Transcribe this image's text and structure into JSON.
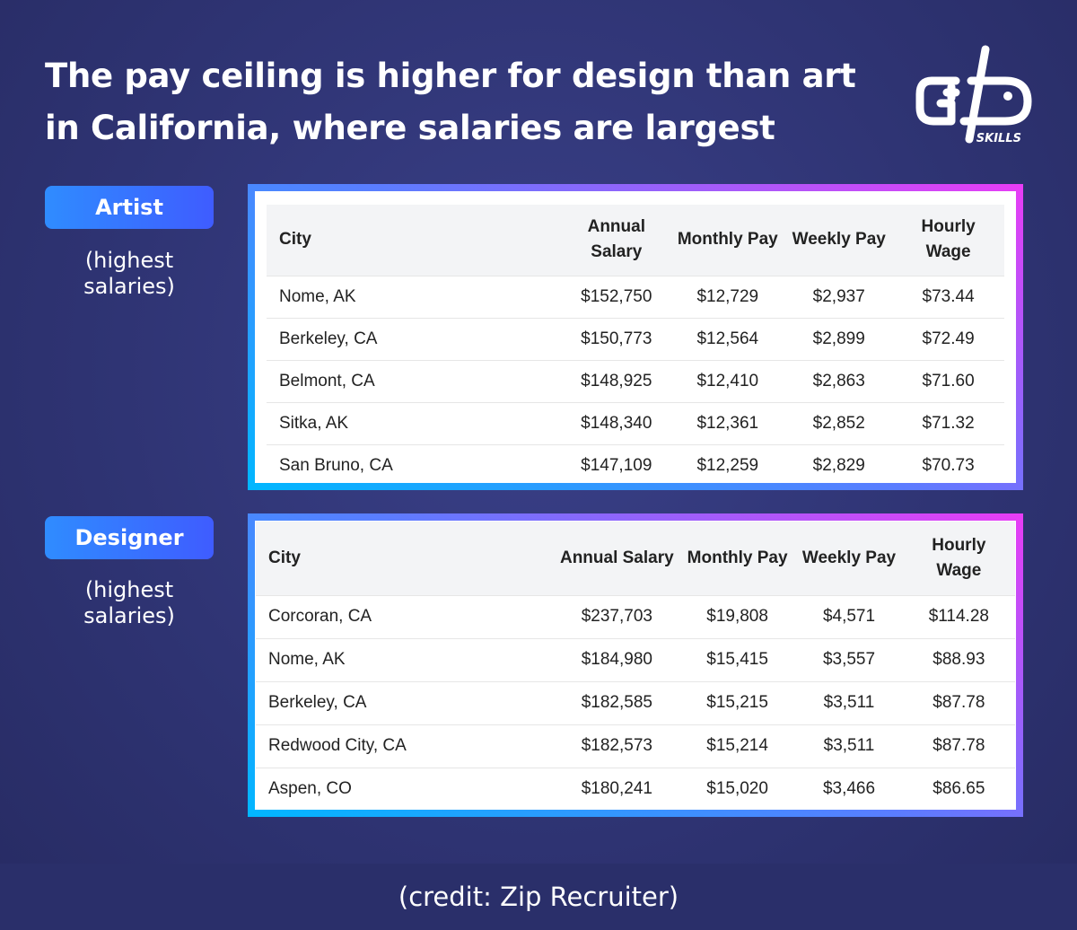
{
  "header": {
    "title": "The pay ceiling is higher for design than art in California, where salaries are largest"
  },
  "logo": {
    "text": "SKILLS"
  },
  "sections": [
    {
      "label": "Artist",
      "note": "(highest salaries)",
      "table": {
        "headers": [
          "City",
          "Annual Salary",
          "Monthly Pay",
          "Weekly Pay",
          "Hourly Wage"
        ],
        "rows": [
          [
            "Nome, AK",
            "$152,750",
            "$12,729",
            "$2,937",
            "$73.44"
          ],
          [
            "Berkeley, CA",
            "$150,773",
            "$12,564",
            "$2,899",
            "$72.49"
          ],
          [
            "Belmont, CA",
            "$148,925",
            "$12,410",
            "$2,863",
            "$71.60"
          ],
          [
            "Sitka, AK",
            "$148,340",
            "$12,361",
            "$2,852",
            "$71.32"
          ],
          [
            "San Bruno, CA",
            "$147,109",
            "$12,259",
            "$2,829",
            "$70.73"
          ]
        ]
      }
    },
    {
      "label": "Designer",
      "note": "(highest salaries)",
      "table": {
        "headers": [
          "City",
          "Annual Salary",
          "Monthly Pay",
          "Weekly Pay",
          "Hourly Wage"
        ],
        "rows": [
          [
            "Corcoran, CA",
            "$237,703",
            "$19,808",
            "$4,571",
            "$114.28"
          ],
          [
            "Nome, AK",
            "$184,980",
            "$15,415",
            "$3,557",
            "$88.93"
          ],
          [
            "Berkeley, CA",
            "$182,585",
            "$15,215",
            "$3,511",
            "$87.78"
          ],
          [
            "Redwood City, CA",
            "$182,573",
            "$15,214",
            "$3,511",
            "$87.78"
          ],
          [
            "Aspen, CO",
            "$180,241",
            "$15,020",
            "$3,466",
            "$86.65"
          ]
        ]
      }
    }
  ],
  "footer": {
    "credit": "(credit: Zip Recruiter)"
  }
}
